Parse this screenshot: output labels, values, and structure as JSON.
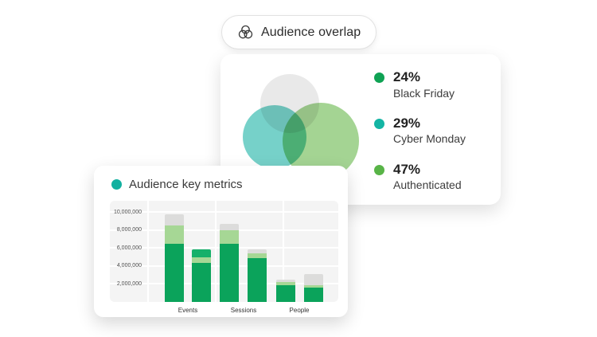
{
  "page": {
    "background": "#ffffff"
  },
  "pill": {
    "label": "Audience overlap"
  },
  "overlap_card": {
    "legend": [
      {
        "value": "24%",
        "label": "Black Friday",
        "dot_color": "#0fa254"
      },
      {
        "value": "29%",
        "label": "Cyber Monday",
        "dot_color": "#14b5a4"
      },
      {
        "value": "47%",
        "label": "Authenticated",
        "dot_color": "#58b447"
      }
    ]
  },
  "metrics_card": {
    "title": "Audience key metrics",
    "dot_color": "#12b0a0"
  },
  "chart_data": [
    {
      "type": "venn",
      "title": "Audience overlap",
      "sets": [
        {
          "label": "Black Friday",
          "percent": 24,
          "legend_color": "#0fa254",
          "circle_color": "#e8e8e8"
        },
        {
          "label": "Cyber Monday",
          "percent": 29,
          "legend_color": "#14b5a4",
          "circle_color": "#5ec9bf"
        },
        {
          "label": "Authenticated",
          "percent": 47,
          "legend_color": "#58b447",
          "circle_color": "#94cd80"
        }
      ],
      "legend_position": "right"
    },
    {
      "type": "bar",
      "stacked": true,
      "title": "Audience key metrics",
      "categories": [
        "Events",
        "Sessions",
        "People"
      ],
      "bars_per_category": 2,
      "y_tick_labels": [
        "10,000,000",
        "8,000,000",
        "6,000,000",
        "4,000,000",
        "2,000,000"
      ],
      "y_tick_values": [
        10000000,
        8000000,
        6000000,
        4000000,
        2000000
      ],
      "ylim": [
        0,
        11200000
      ],
      "grid": true,
      "xlabel": "",
      "ylabel": "",
      "segment_colors": {
        "green-dark": "#0ba35b",
        "green-light": "#a6d795",
        "gray": "#dcdcdb",
        "green-emerald": "#16b06a"
      },
      "bars": [
        {
          "category": "Events",
          "index": 0,
          "total": 9700000,
          "segments": [
            {
              "name": "green-dark",
              "value": 6500000
            },
            {
              "name": "green-light",
              "value": 2000000
            },
            {
              "name": "gray",
              "value": 1200000
            }
          ]
        },
        {
          "category": "Events",
          "index": 1,
          "total": 5800000,
          "segments": [
            {
              "name": "green-dark",
              "value": 4300000
            },
            {
              "name": "green-light",
              "value": 700000
            },
            {
              "name": "green-emerald",
              "value": 800000
            }
          ]
        },
        {
          "category": "Sessions",
          "index": 0,
          "total": 8700000,
          "segments": [
            {
              "name": "green-dark",
              "value": 6500000
            },
            {
              "name": "green-light",
              "value": 1500000
            },
            {
              "name": "gray",
              "value": 700000
            }
          ]
        },
        {
          "category": "Sessions",
          "index": 1,
          "total": 5800000,
          "segments": [
            {
              "name": "green-dark",
              "value": 4900000
            },
            {
              "name": "green-light",
              "value": 500000
            },
            {
              "name": "gray",
              "value": 400000
            }
          ]
        },
        {
          "category": "People",
          "index": 0,
          "total": 2500000,
          "segments": [
            {
              "name": "green-dark",
              "value": 1900000
            },
            {
              "name": "green-light",
              "value": 300000
            },
            {
              "name": "gray",
              "value": 300000
            }
          ]
        },
        {
          "category": "People",
          "index": 1,
          "total": 3100000,
          "segments": [
            {
              "name": "green-dark",
              "value": 1600000
            },
            {
              "name": "green-light",
              "value": 300000
            },
            {
              "name": "gray",
              "value": 1200000
            }
          ]
        }
      ]
    }
  ]
}
